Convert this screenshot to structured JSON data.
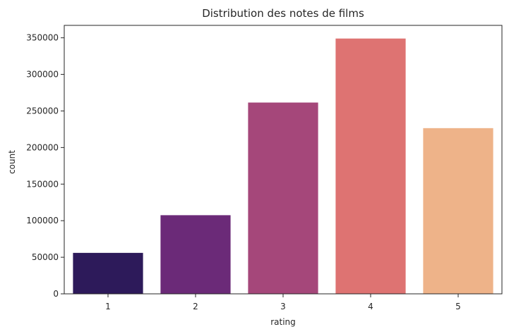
{
  "chart_data": {
    "type": "bar",
    "title": "Distribution des notes de films",
    "xlabel": "rating",
    "ylabel": "count",
    "categories": [
      "1",
      "2",
      "3",
      "4",
      "5"
    ],
    "values": [
      56000,
      107500,
      261500,
      349000,
      226500
    ],
    "colors": [
      "#2d1a5a",
      "#6b2a78",
      "#a5477a",
      "#de7372",
      "#eeb389"
    ],
    "ylim": [
      0,
      367000
    ],
    "yticks": [
      0,
      50000,
      100000,
      150000,
      200000,
      250000,
      300000,
      350000
    ],
    "ytick_labels": [
      "0",
      "50000",
      "100000",
      "150000",
      "200000",
      "250000",
      "300000",
      "350000"
    ],
    "grid": false,
    "legend": "none"
  }
}
